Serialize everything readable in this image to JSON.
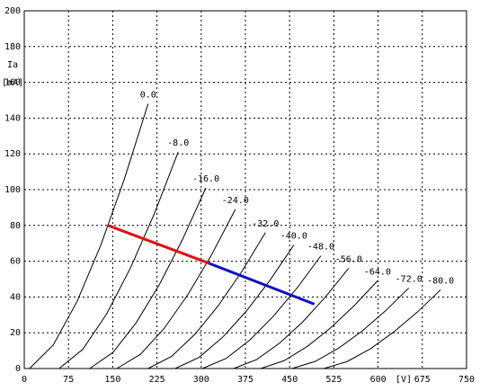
{
  "chart_data": {
    "type": "line",
    "y_label": "Ia",
    "y_unit": "[mA]",
    "x_unit": "[V]",
    "xlim": [
      0,
      750
    ],
    "ylim": [
      0,
      200
    ],
    "xticks": [
      0,
      75,
      150,
      225,
      300,
      375,
      450,
      525,
      600,
      675,
      750
    ],
    "yticks": [
      0,
      20,
      40,
      60,
      80,
      100,
      120,
      140,
      160,
      180,
      200
    ],
    "grid": true,
    "series": [
      {
        "name": "0.0",
        "color": "#000000",
        "x": [
          9,
          49.2,
          89.4,
          129.6,
          169.8,
          210
        ],
        "values": [
          0,
          13.2,
          37.4,
          68.8,
          106,
          148
        ]
      },
      {
        "name": "-8.0",
        "color": "#000000",
        "x": [
          59,
          99.4,
          139.8,
          180.2,
          220.6,
          261
        ],
        "values": [
          0,
          10.8,
          30.6,
          56.3,
          86.6,
          121
        ]
      },
      {
        "name": "-16.0",
        "color": "#000000",
        "x": [
          111,
          150.4,
          189.8,
          229.2,
          268.6,
          308
        ],
        "values": [
          0,
          9.0,
          25.6,
          47.0,
          72.3,
          101
        ]
      },
      {
        "name": "-24.0",
        "color": "#000000",
        "x": [
          157,
          197.2,
          237.4,
          277.6,
          317.8,
          358
        ],
        "values": [
          0,
          8.0,
          22.5,
          41.4,
          63.7,
          89
        ]
      },
      {
        "name": "-32.0",
        "color": "#000000",
        "x": [
          210,
          249.8,
          289.6,
          329.4,
          369.2,
          409
        ],
        "values": [
          0,
          6.8,
          19.2,
          35.3,
          54.4,
          76
        ]
      },
      {
        "name": "-40.0",
        "color": "#000000",
        "x": [
          256,
          296.2,
          336.4,
          376.6,
          416.8,
          457
        ],
        "values": [
          0,
          6.2,
          17.5,
          32.1,
          49.4,
          69
        ]
      },
      {
        "name": "-48.0",
        "color": "#000000",
        "x": [
          302,
          342.2,
          382.4,
          422.6,
          462.8,
          503
        ],
        "values": [
          0,
          5.6,
          15.9,
          29.3,
          45.1,
          63
        ]
      },
      {
        "name": "-56.0",
        "color": "#000000",
        "x": [
          355,
          394,
          433,
          472,
          511,
          550
        ],
        "values": [
          0,
          5.0,
          14.2,
          26.0,
          40.1,
          56
        ]
      },
      {
        "name": "-64.0",
        "color": "#000000",
        "x": [
          401,
          440.6,
          480.2,
          519.8,
          559.4,
          599
        ],
        "values": [
          0,
          4.4,
          12.4,
          22.8,
          35.1,
          49
        ]
      },
      {
        "name": "-72.0",
        "color": "#000000",
        "x": [
          454,
          493.6,
          533.2,
          572.8,
          612.4,
          652
        ],
        "values": [
          0,
          4.0,
          11.4,
          20.9,
          32.2,
          45
        ]
      },
      {
        "name": "-80.0",
        "color": "#000000",
        "x": [
          508,
          547.6,
          587.2,
          626.8,
          666.4,
          706
        ],
        "values": [
          0,
          3.9,
          11.1,
          20.5,
          31.5,
          44
        ]
      }
    ],
    "load_line": [
      {
        "color": "#e01010",
        "x": [
          142,
          312
        ],
        "values": [
          80,
          59
        ]
      },
      {
        "color": "#1010c8",
        "x": [
          312,
          492
        ],
        "values": [
          59,
          36
        ]
      }
    ]
  }
}
